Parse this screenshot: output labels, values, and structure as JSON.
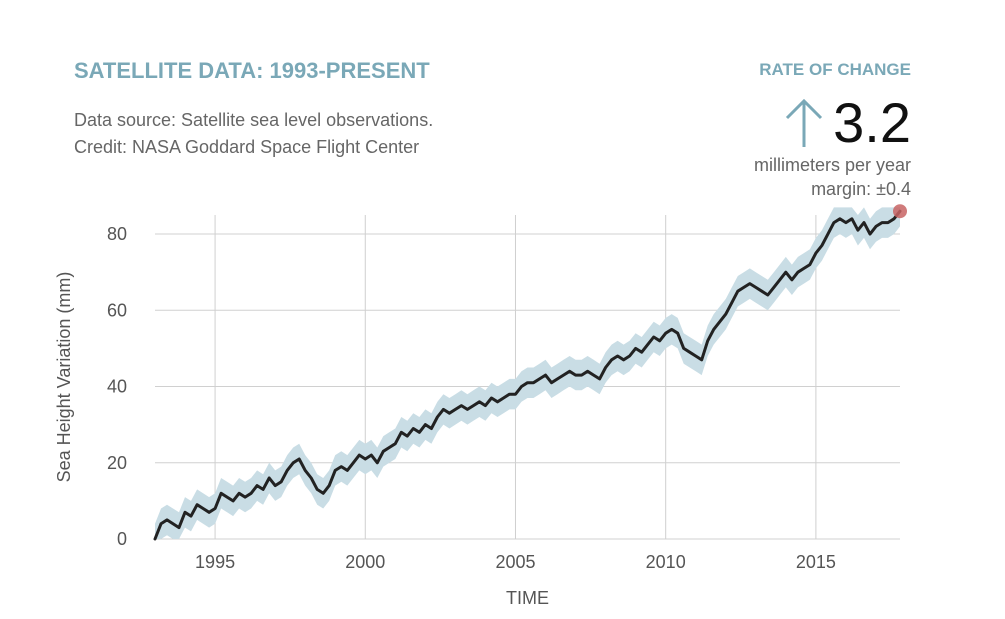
{
  "header": {
    "title": "SATELLITE DATA: 1993-PRESENT",
    "source_line1": "Data source: Satellite sea level observations.",
    "source_line2": "Credit: NASA Goddard Space Flight Center"
  },
  "rate": {
    "heading": "RATE OF CHANGE",
    "direction_icon": "up-arrow-icon",
    "value": "3.2",
    "unit": "millimeters per year",
    "margin": "margin: ±0.4"
  },
  "colors": {
    "accent": "#7aa8b7",
    "line": "#222222",
    "band": "#c9dde5",
    "grid": "#d0d0d0",
    "endpoint": "#c86464"
  },
  "chart_data": {
    "type": "line",
    "title": "",
    "xlabel": "TIME",
    "ylabel": "Sea Height Variation (mm)",
    "xlim": [
      1993.0,
      2017.8
    ],
    "ylim": [
      0,
      85
    ],
    "x_ticks": [
      1995,
      2000,
      2005,
      2010,
      2015
    ],
    "y_ticks": [
      0,
      20,
      40,
      60,
      80
    ],
    "x_tick_labels": [
      "1995",
      "2000",
      "2005",
      "2010",
      "2015"
    ],
    "y_tick_labels": [
      "0",
      "20",
      "40",
      "60",
      "80"
    ],
    "grid": true,
    "uncertainty_band": 4,
    "series": [
      {
        "x": [
          1993.0,
          1993.2,
          1993.4,
          1993.6,
          1993.8,
          1994.0,
          1994.2,
          1994.4,
          1994.6,
          1994.8,
          1995.0,
          1995.2,
          1995.4,
          1995.6,
          1995.8,
          1996.0,
          1996.2,
          1996.4,
          1996.6,
          1996.8,
          1997.0,
          1997.2,
          1997.4,
          1997.6,
          1997.8,
          1998.0,
          1998.2,
          1998.4,
          1998.6,
          1998.8,
          1999.0,
          1999.2,
          1999.4,
          1999.6,
          1999.8,
          2000.0,
          2000.2,
          2000.4,
          2000.6,
          2000.8,
          2001.0,
          2001.2,
          2001.4,
          2001.6,
          2001.8,
          2002.0,
          2002.2,
          2002.4,
          2002.6,
          2002.8,
          2003.0,
          2003.2,
          2003.4,
          2003.6,
          2003.8,
          2004.0,
          2004.2,
          2004.4,
          2004.6,
          2004.8,
          2005.0,
          2005.2,
          2005.4,
          2005.6,
          2005.8,
          2006.0,
          2006.2,
          2006.4,
          2006.6,
          2006.8,
          2007.0,
          2007.2,
          2007.4,
          2007.6,
          2007.8,
          2008.0,
          2008.2,
          2008.4,
          2008.6,
          2008.8,
          2009.0,
          2009.2,
          2009.4,
          2009.6,
          2009.8,
          2010.0,
          2010.2,
          2010.4,
          2010.6,
          2010.8,
          2011.0,
          2011.2,
          2011.4,
          2011.6,
          2011.8,
          2012.0,
          2012.2,
          2012.4,
          2012.6,
          2012.8,
          2013.0,
          2013.2,
          2013.4,
          2013.6,
          2013.8,
          2014.0,
          2014.2,
          2014.4,
          2014.6,
          2014.8,
          2015.0,
          2015.2,
          2015.4,
          2015.6,
          2015.8,
          2016.0,
          2016.2,
          2016.4,
          2016.6,
          2016.8,
          2017.0,
          2017.2,
          2017.4,
          2017.6,
          2017.8
        ],
        "values": [
          0,
          4,
          5,
          4,
          3,
          7,
          6,
          9,
          8,
          7,
          8,
          12,
          11,
          10,
          12,
          11,
          12,
          14,
          13,
          16,
          14,
          15,
          18,
          20,
          21,
          18,
          16,
          13,
          12,
          14,
          18,
          19,
          18,
          20,
          22,
          21,
          22,
          20,
          23,
          24,
          25,
          28,
          27,
          29,
          28,
          30,
          29,
          32,
          34,
          33,
          34,
          35,
          34,
          35,
          36,
          35,
          37,
          36,
          37,
          38,
          38,
          40,
          41,
          41,
          42,
          43,
          41,
          42,
          43,
          44,
          43,
          43,
          44,
          43,
          42,
          45,
          47,
          48,
          47,
          48,
          50,
          49,
          51,
          53,
          52,
          54,
          55,
          54,
          50,
          49,
          48,
          47,
          52,
          55,
          57,
          59,
          62,
          65,
          66,
          67,
          66,
          65,
          64,
          66,
          68,
          70,
          68,
          70,
          71,
          72,
          75,
          77,
          80,
          83,
          84,
          83,
          84,
          81,
          83,
          80,
          82,
          83,
          83,
          84,
          86
        ],
        "endpoint_value": 86
      }
    ]
  }
}
